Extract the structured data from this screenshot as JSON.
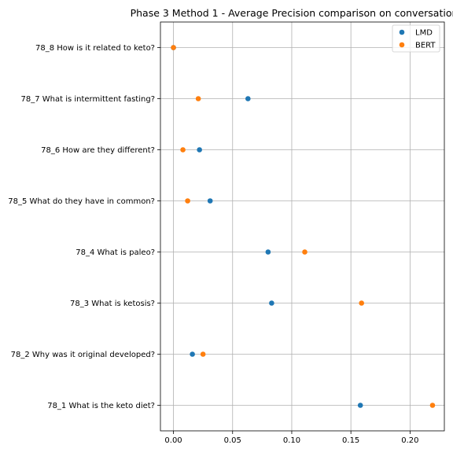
{
  "chart_data": {
    "type": "scatter",
    "title": "Phase 3 Method 1 - Average Precision comparison on conversation",
    "xlabel": "",
    "ylabel": "",
    "xlim": [
      -0.011,
      0.229
    ],
    "xticks": [
      0.0,
      0.05,
      0.1,
      0.15,
      0.2
    ],
    "xtick_labels": [
      "0.00",
      "0.05",
      "0.10",
      "0.15",
      "0.20"
    ],
    "categories": [
      "78_1 What is the keto diet?",
      "78_2 Why was it original developed?",
      "78_3 What is ketosis?",
      "78_4 What is paleo?",
      "78_5 What do they have in common?",
      "78_6 How are they different?",
      "78_7 What is intermittent fasting?",
      "78_8 How is it related to keto?"
    ],
    "series": [
      {
        "name": "LMD",
        "color": "#1f77b4",
        "values": [
          0.158,
          0.016,
          0.083,
          0.08,
          0.031,
          0.022,
          0.063,
          0.0
        ]
      },
      {
        "name": "BERT",
        "color": "#ff7f0e",
        "values": [
          0.219,
          0.025,
          0.159,
          0.111,
          0.012,
          0.008,
          0.021,
          0.0
        ]
      }
    ],
    "grid": true,
    "legend_position": "top-right"
  }
}
